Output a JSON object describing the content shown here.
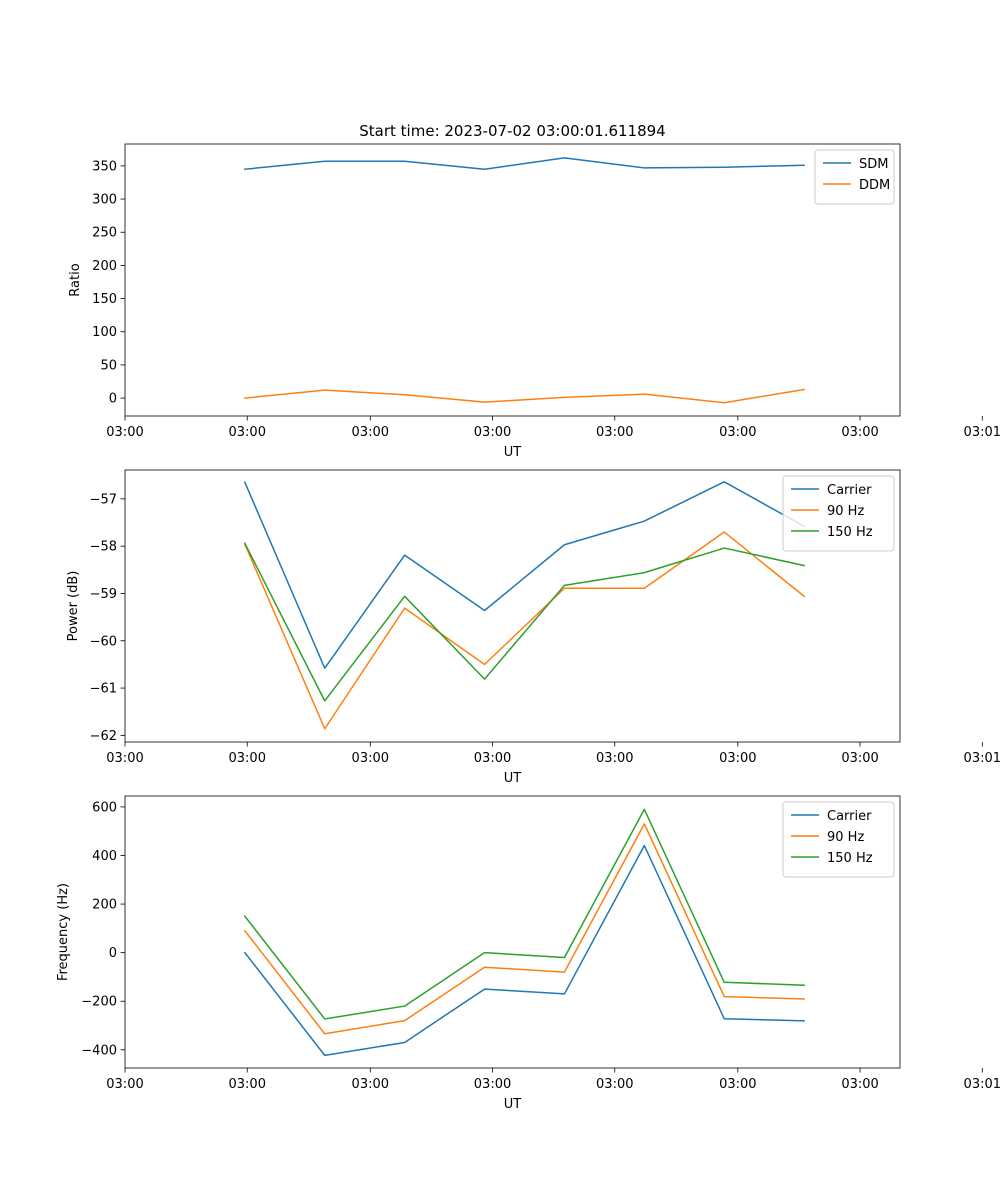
{
  "chart_data": [
    {
      "type": "line",
      "title": "Start time: 2023-07-02 03:00:01.611894",
      "xlabel": "UT",
      "ylabel": "Ratio",
      "x": [
        1,
        2,
        3,
        4,
        5,
        6,
        7,
        8
      ],
      "xlim": [
        -0.5,
        9.2
      ],
      "x_ticks": [
        -0.5,
        1.03,
        2.57,
        4.1,
        5.63,
        7.17,
        8.7,
        10.23
      ],
      "x_tick_labels": [
        "03:00",
        "03:00",
        "03:00",
        "03:00",
        "03:00",
        "03:00",
        "03:00",
        "03:01"
      ],
      "ylim": [
        -27,
        383
      ],
      "y_ticks": [
        0,
        50,
        100,
        150,
        200,
        250,
        300,
        350
      ],
      "y_tick_labels": [
        "0",
        "50",
        "100",
        "150",
        "200",
        "250",
        "300",
        "350"
      ],
      "legend_position": "top-right",
      "series": [
        {
          "name": "SDM",
          "color": "#1f77b4",
          "values": [
            345,
            357,
            357,
            345,
            362,
            347,
            348,
            351
          ]
        },
        {
          "name": "DDM",
          "color": "#ff7f0e",
          "values": [
            0,
            12,
            5,
            -6,
            1,
            6,
            -7,
            13
          ]
        }
      ]
    },
    {
      "type": "line",
      "title": "",
      "xlabel": "UT",
      "ylabel": "Power (dB)",
      "x": [
        1,
        2,
        3,
        4,
        5,
        6,
        7,
        8
      ],
      "xlim": [
        -0.5,
        9.2
      ],
      "x_ticks": [
        -0.5,
        1.03,
        2.57,
        4.1,
        5.63,
        7.17,
        8.7,
        10.23
      ],
      "x_tick_labels": [
        "03:00",
        "03:00",
        "03:00",
        "03:00",
        "03:00",
        "03:00",
        "03:00",
        "03:01"
      ],
      "ylim": [
        -62.14,
        -56.39
      ],
      "y_ticks": [
        -62,
        -61,
        -60,
        -59,
        -58,
        -57
      ],
      "y_tick_labels": [
        "−62",
        "−61",
        "−60",
        "−59",
        "−58",
        "−57"
      ],
      "legend_position": "top-right",
      "series": [
        {
          "name": "Carrier",
          "color": "#1f77b4",
          "values": [
            -56.65,
            -60.58,
            -58.19,
            -59.36,
            -57.97,
            -57.47,
            -56.64,
            -57.58
          ]
        },
        {
          "name": "90 Hz",
          "color": "#ff7f0e",
          "values": [
            -57.96,
            -61.86,
            -59.31,
            -60.5,
            -58.89,
            -58.89,
            -57.7,
            -59.06
          ]
        },
        {
          "name": "150 Hz",
          "color": "#2ca02c",
          "values": [
            -57.94,
            -61.27,
            -59.06,
            -60.81,
            -58.83,
            -58.56,
            -58.04,
            -58.41
          ]
        }
      ]
    },
    {
      "type": "line",
      "title": "",
      "xlabel": "UT",
      "ylabel": "Frequency (Hz)",
      "x": [
        1,
        2,
        3,
        4,
        5,
        6,
        7,
        8
      ],
      "xlim": [
        -0.5,
        9.2
      ],
      "x_ticks": [
        -0.5,
        1.03,
        2.57,
        4.1,
        5.63,
        7.17,
        8.7,
        10.23
      ],
      "x_tick_labels": [
        "03:00",
        "03:00",
        "03:00",
        "03:00",
        "03:00",
        "03:00",
        "03:00",
        "03:01"
      ],
      "ylim": [
        -475,
        645
      ],
      "y_ticks": [
        -400,
        -200,
        0,
        200,
        400,
        600
      ],
      "y_tick_labels": [
        "−400",
        "−200",
        "0",
        "200",
        "400",
        "600"
      ],
      "legend_position": "top-right",
      "series": [
        {
          "name": "Carrier",
          "color": "#1f77b4",
          "values": [
            0,
            -423,
            -370,
            -150,
            -170,
            441,
            -272,
            -281
          ]
        },
        {
          "name": "90 Hz",
          "color": "#ff7f0e",
          "values": [
            90,
            -334,
            -280,
            -60,
            -80,
            530,
            -181,
            -191
          ]
        },
        {
          "name": "150 Hz",
          "color": "#2ca02c",
          "values": [
            150,
            -273,
            -220,
            0,
            -20,
            590,
            -122,
            -134
          ]
        }
      ]
    }
  ]
}
